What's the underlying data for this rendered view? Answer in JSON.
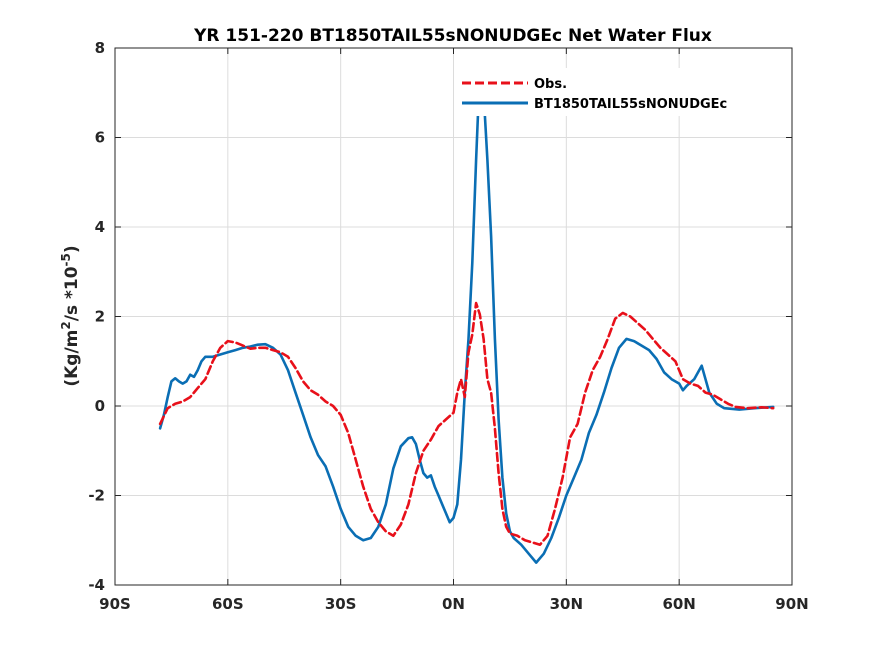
{
  "chart_data": {
    "type": "line",
    "title": "YR 151-220 BT1850TAIL55sNONUDGEc  Net Water Flux",
    "ylabel_main": "(Kg/m",
    "ylabel_sup1": "2",
    "ylabel_mid": "/s *10",
    "ylabel_sup2": "-5",
    "ylabel_end": ")",
    "xlim": [
      -90,
      90
    ],
    "ylim": [
      -4,
      8
    ],
    "xticks": [
      -90,
      -60,
      -30,
      0,
      30,
      60,
      90
    ],
    "xtick_labels": [
      "90S",
      "60S",
      "30S",
      "0N",
      "30N",
      "60N",
      "90N"
    ],
    "yticks": [
      -4,
      -2,
      0,
      2,
      4,
      6,
      8
    ],
    "ytick_labels": [
      "-4",
      "-2",
      "0",
      "2",
      "4",
      "6",
      "8"
    ],
    "grid": true,
    "legend_position": "top-right",
    "series": [
      {
        "name": "Obs.",
        "color": "#e8101a",
        "dash": "dashed",
        "points": [
          [
            -78,
            -0.4
          ],
          [
            -76,
            -0.05
          ],
          [
            -74,
            0.05
          ],
          [
            -72,
            0.1
          ],
          [
            -70,
            0.2
          ],
          [
            -68,
            0.4
          ],
          [
            -66,
            0.6
          ],
          [
            -64,
            1.0
          ],
          [
            -62,
            1.3
          ],
          [
            -60,
            1.45
          ],
          [
            -58,
            1.42
          ],
          [
            -56,
            1.35
          ],
          [
            -54,
            1.28
          ],
          [
            -52,
            1.3
          ],
          [
            -50,
            1.3
          ],
          [
            -48,
            1.25
          ],
          [
            -46,
            1.2
          ],
          [
            -44,
            1.1
          ],
          [
            -42,
            0.85
          ],
          [
            -40,
            0.55
          ],
          [
            -38,
            0.35
          ],
          [
            -36,
            0.25
          ],
          [
            -34,
            0.1
          ],
          [
            -32,
            0.0
          ],
          [
            -30,
            -0.2
          ],
          [
            -28,
            -0.6
          ],
          [
            -26,
            -1.2
          ],
          [
            -24,
            -1.8
          ],
          [
            -22,
            -2.3
          ],
          [
            -20,
            -2.6
          ],
          [
            -18,
            -2.8
          ],
          [
            -16,
            -2.9
          ],
          [
            -14,
            -2.65
          ],
          [
            -12,
            -2.2
          ],
          [
            -10,
            -1.5
          ],
          [
            -8,
            -1.0
          ],
          [
            -6,
            -0.75
          ],
          [
            -4,
            -0.45
          ],
          [
            -2,
            -0.3
          ],
          [
            0,
            -0.15
          ],
          [
            1,
            0.3
          ],
          [
            2,
            0.6
          ],
          [
            3,
            0.2
          ],
          [
            4,
            1.2
          ],
          [
            5,
            1.6
          ],
          [
            6,
            2.3
          ],
          [
            7,
            2.05
          ],
          [
            8,
            1.5
          ],
          [
            9,
            0.6
          ],
          [
            10,
            0.3
          ],
          [
            11,
            -0.5
          ],
          [
            12,
            -1.5
          ],
          [
            13,
            -2.3
          ],
          [
            14,
            -2.7
          ],
          [
            15,
            -2.85
          ],
          [
            17,
            -2.9
          ],
          [
            19,
            -3.0
          ],
          [
            21,
            -3.05
          ],
          [
            23,
            -3.1
          ],
          [
            25,
            -2.9
          ],
          [
            27,
            -2.3
          ],
          [
            29,
            -1.6
          ],
          [
            31,
            -0.7
          ],
          [
            33,
            -0.4
          ],
          [
            35,
            0.3
          ],
          [
            37,
            0.8
          ],
          [
            39,
            1.1
          ],
          [
            41,
            1.5
          ],
          [
            43,
            1.95
          ],
          [
            45,
            2.08
          ],
          [
            47,
            2.0
          ],
          [
            49,
            1.85
          ],
          [
            51,
            1.7
          ],
          [
            53,
            1.5
          ],
          [
            55,
            1.3
          ],
          [
            57,
            1.15
          ],
          [
            59,
            1.0
          ],
          [
            61,
            0.6
          ],
          [
            63,
            0.5
          ],
          [
            65,
            0.45
          ],
          [
            67,
            0.3
          ],
          [
            69,
            0.25
          ],
          [
            71,
            0.15
          ],
          [
            73,
            0.05
          ],
          [
            75,
            -0.02
          ],
          [
            78,
            -0.05
          ],
          [
            82,
            -0.03
          ],
          [
            85,
            -0.05
          ]
        ]
      },
      {
        "name": "BT1850TAIL55sNONUDGEc",
        "color": "#0a6eb4",
        "dash": "solid",
        "points": [
          [
            -78,
            -0.5
          ],
          [
            -77,
            -0.2
          ],
          [
            -76,
            0.2
          ],
          [
            -75,
            0.55
          ],
          [
            -74,
            0.62
          ],
          [
            -73,
            0.55
          ],
          [
            -72,
            0.5
          ],
          [
            -71,
            0.55
          ],
          [
            -70,
            0.7
          ],
          [
            -69,
            0.65
          ],
          [
            -68,
            0.8
          ],
          [
            -67,
            1.0
          ],
          [
            -66,
            1.1
          ],
          [
            -64,
            1.1
          ],
          [
            -62,
            1.15
          ],
          [
            -60,
            1.2
          ],
          [
            -58,
            1.25
          ],
          [
            -56,
            1.3
          ],
          [
            -54,
            1.33
          ],
          [
            -52,
            1.37
          ],
          [
            -50,
            1.38
          ],
          [
            -48,
            1.3
          ],
          [
            -46,
            1.15
          ],
          [
            -44,
            0.8
          ],
          [
            -42,
            0.3
          ],
          [
            -40,
            -0.2
          ],
          [
            -38,
            -0.7
          ],
          [
            -36,
            -1.1
          ],
          [
            -34,
            -1.35
          ],
          [
            -32,
            -1.8
          ],
          [
            -30,
            -2.3
          ],
          [
            -28,
            -2.7
          ],
          [
            -26,
            -2.9
          ],
          [
            -24,
            -3.0
          ],
          [
            -22,
            -2.95
          ],
          [
            -20,
            -2.7
          ],
          [
            -18,
            -2.2
          ],
          [
            -16,
            -1.4
          ],
          [
            -14,
            -0.9
          ],
          [
            -12,
            -0.72
          ],
          [
            -11,
            -0.7
          ],
          [
            -10,
            -0.85
          ],
          [
            -9,
            -1.2
          ],
          [
            -8,
            -1.5
          ],
          [
            -7,
            -1.6
          ],
          [
            -6,
            -1.55
          ],
          [
            -5,
            -1.8
          ],
          [
            -4,
            -2.0
          ],
          [
            -3,
            -2.2
          ],
          [
            -2,
            -2.4
          ],
          [
            -1,
            -2.6
          ],
          [
            0,
            -2.5
          ],
          [
            1,
            -2.2
          ],
          [
            2,
            -1.2
          ],
          [
            3,
            0.3
          ],
          [
            4,
            1.5
          ],
          [
            5,
            3.2
          ],
          [
            6,
            5.5
          ],
          [
            7,
            7.5
          ],
          [
            8,
            7.0
          ],
          [
            9,
            5.5
          ],
          [
            10,
            3.8
          ],
          [
            11,
            1.5
          ],
          [
            12,
            -0.3
          ],
          [
            13,
            -1.6
          ],
          [
            14,
            -2.4
          ],
          [
            15,
            -2.8
          ],
          [
            16,
            -2.95
          ],
          [
            18,
            -3.1
          ],
          [
            20,
            -3.3
          ],
          [
            22,
            -3.5
          ],
          [
            24,
            -3.3
          ],
          [
            26,
            -2.95
          ],
          [
            28,
            -2.5
          ],
          [
            30,
            -2.0
          ],
          [
            32,
            -1.6
          ],
          [
            34,
            -1.2
          ],
          [
            36,
            -0.6
          ],
          [
            38,
            -0.2
          ],
          [
            40,
            0.3
          ],
          [
            42,
            0.85
          ],
          [
            44,
            1.3
          ],
          [
            46,
            1.5
          ],
          [
            48,
            1.45
          ],
          [
            50,
            1.35
          ],
          [
            52,
            1.25
          ],
          [
            54,
            1.05
          ],
          [
            56,
            0.75
          ],
          [
            58,
            0.6
          ],
          [
            60,
            0.5
          ],
          [
            61,
            0.35
          ],
          [
            62,
            0.45
          ],
          [
            64,
            0.6
          ],
          [
            65,
            0.75
          ],
          [
            66,
            0.9
          ],
          [
            67,
            0.6
          ],
          [
            68,
            0.3
          ],
          [
            70,
            0.05
          ],
          [
            72,
            -0.05
          ],
          [
            76,
            -0.08
          ],
          [
            80,
            -0.05
          ],
          [
            85,
            -0.02
          ]
        ]
      }
    ]
  }
}
